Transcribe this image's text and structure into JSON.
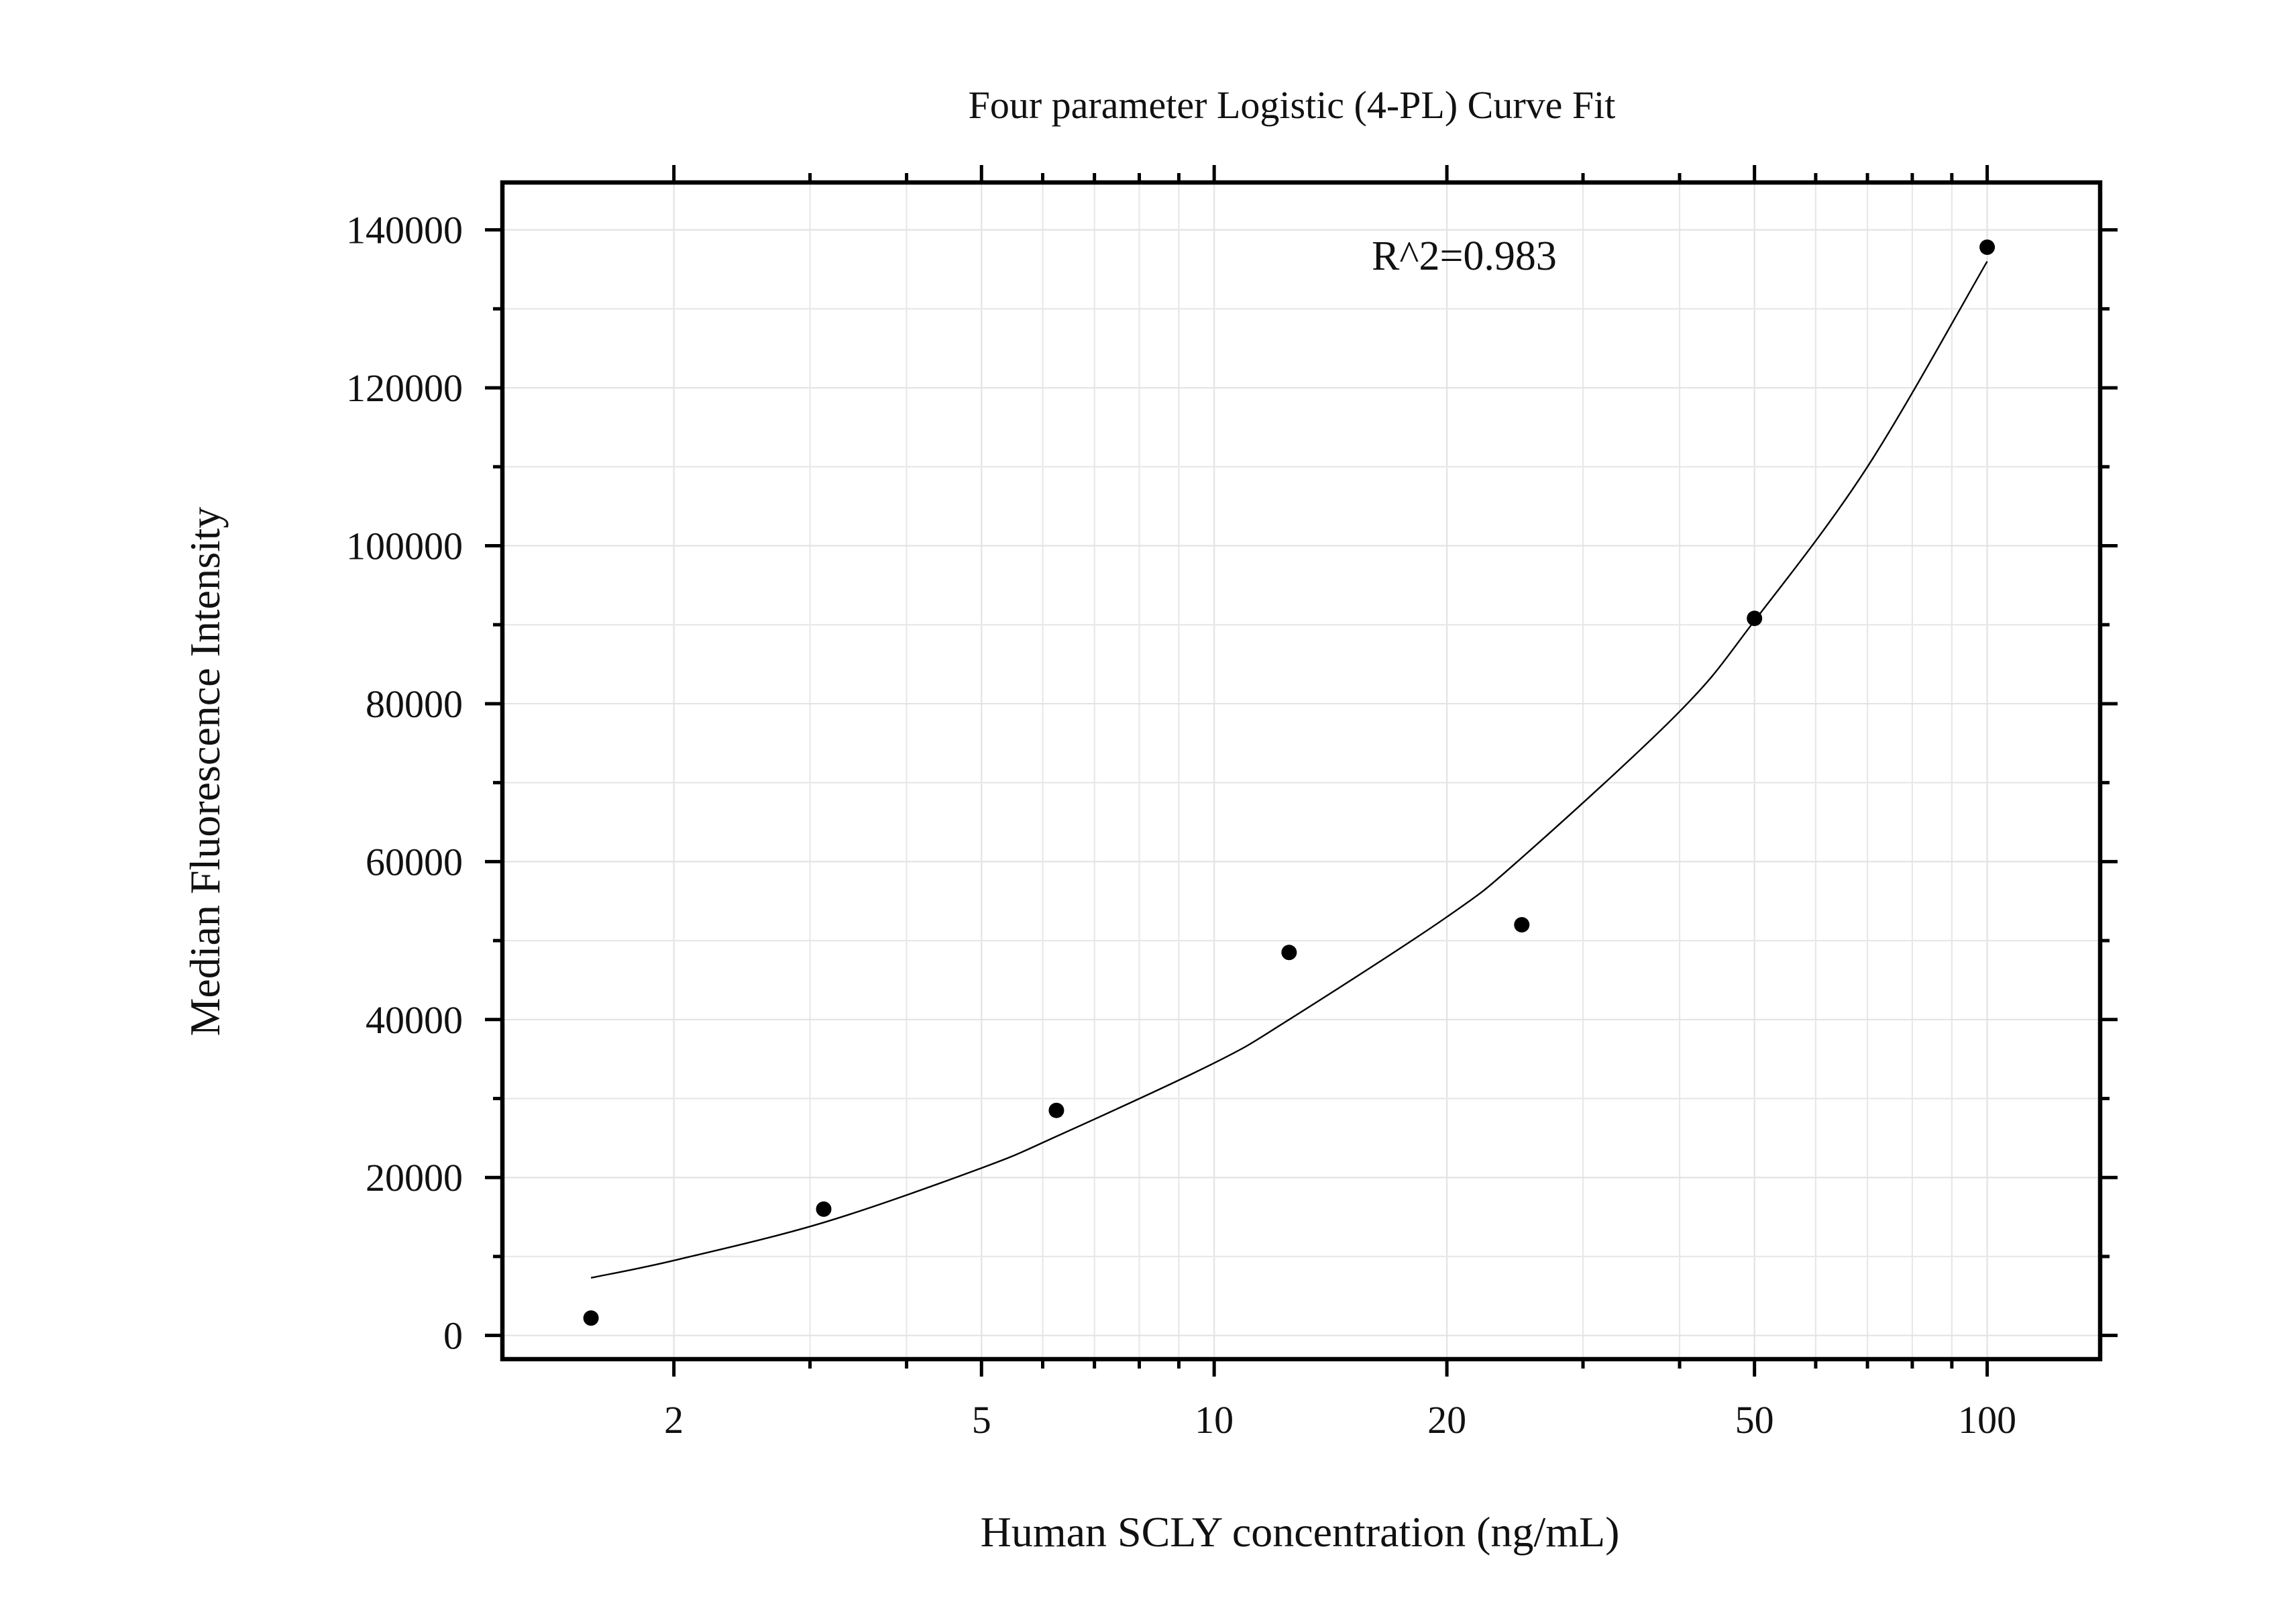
{
  "chart_data": {
    "type": "scatter",
    "title": "Four parameter Logistic (4-PL) Curve Fit",
    "xlabel": "Human SCLY concentration (ng/mL)",
    "ylabel": "Median Fluorescence Intensity",
    "x_scale": "log",
    "xlim": [
      1.2,
      140
    ],
    "ylim": [
      -3000,
      146000
    ],
    "x_ticks": [
      2,
      5,
      10,
      20,
      50,
      100
    ],
    "x_tick_labels": [
      "2",
      "5",
      "10",
      "20",
      "50",
      "100"
    ],
    "y_ticks": [
      0,
      20000,
      40000,
      60000,
      80000,
      100000,
      120000,
      140000
    ],
    "y_tick_labels": [
      "0",
      "20000",
      "40000",
      "60000",
      "80000",
      "100000",
      "120000",
      "140000"
    ],
    "grid": true,
    "annotation": "R^2=0.983",
    "series": [
      {
        "type": "scatter",
        "x": [
          1.5625,
          3.125,
          6.25,
          12.5,
          25,
          50,
          100
        ],
        "y": [
          2200,
          16000,
          28500,
          48500,
          52000,
          90800,
          137800
        ]
      },
      {
        "type": "line",
        "x": [
          1.5625,
          2,
          3.125,
          5,
          6.25,
          10,
          12.5,
          20,
          25,
          40,
          50,
          70,
          100
        ],
        "y": [
          7300,
          9500,
          14300,
          21200,
          25200,
          34500,
          40000,
          53000,
          60500,
          79000,
          90500,
          110000,
          136000
        ]
      }
    ]
  }
}
